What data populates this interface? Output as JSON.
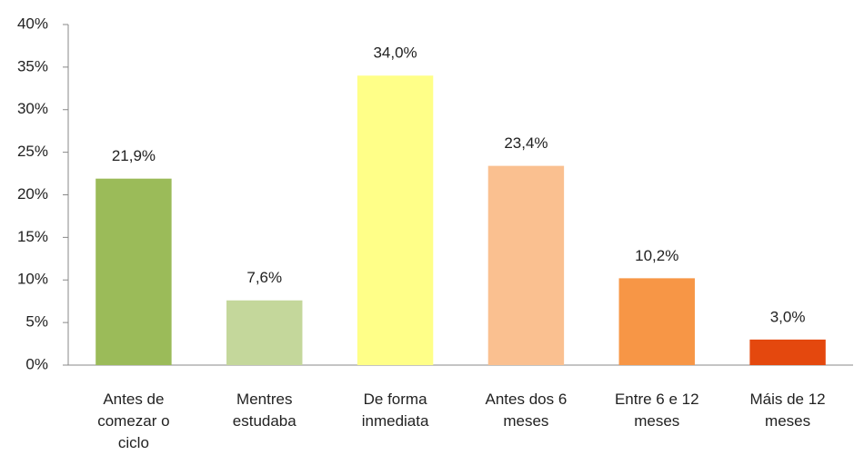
{
  "chart_data": {
    "type": "bar",
    "categories": [
      "Antes de comezar o ciclo",
      "Mentres estudaba",
      "De forma inmediata",
      "Antes dos 6 meses",
      "Entre 6 e 12 meses",
      "Máis de 12 meses"
    ],
    "values": [
      21.9,
      7.6,
      34.0,
      23.4,
      10.2,
      3.0
    ],
    "value_labels": [
      "21,9%",
      "7,6%",
      "34,0%",
      "23,4%",
      "10,2%",
      "3,0%"
    ],
    "colors": [
      "#9bbb59",
      "#c4d79b",
      "#ffff88",
      "#fac090",
      "#f79646",
      "#e4480e"
    ],
    "ylim": [
      0,
      40
    ],
    "yticks": [
      {
        "value": 0,
        "label": "0%"
      },
      {
        "value": 5,
        "label": "5%"
      },
      {
        "value": 10,
        "label": "10%"
      },
      {
        "value": 15,
        "label": "15%"
      },
      {
        "value": 20,
        "label": "20%"
      },
      {
        "value": 25,
        "label": "25%"
      },
      {
        "value": 30,
        "label": "30%"
      },
      {
        "value": 35,
        "label": "35%"
      },
      {
        "value": 40,
        "label": "40%"
      }
    ],
    "grid": false
  }
}
